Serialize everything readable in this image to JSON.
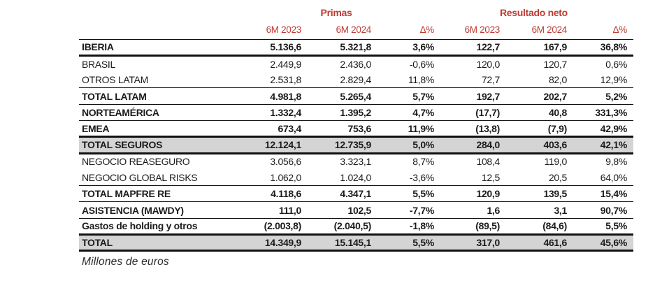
{
  "colors": {
    "header_red": "#be3b31",
    "total_row_bg": "#d4d4d4",
    "border": "#111111",
    "text": "#1b1b1b"
  },
  "footnote": "Millones de euros",
  "table": {
    "group_headers": [
      {
        "label": "Primas"
      },
      {
        "label": "Resultado neto"
      }
    ],
    "column_headers": [
      "6M 2023",
      "6M 2024",
      "Δ%",
      "6M 2023",
      "6M 2024",
      "Δ%"
    ],
    "rows": [
      {
        "label": "IBERIA",
        "values": [
          "5.136,6",
          "5.321,8",
          "3,6%",
          "122,7",
          "167,9",
          "36,8%"
        ]
      },
      {
        "label": "BRASIL",
        "values": [
          "2.449,9",
          "2.436,0",
          "-0,6%",
          "120,0",
          "120,7",
          "0,6%"
        ]
      },
      {
        "label": "OTROS LATAM",
        "values": [
          "2.531,8",
          "2.829,4",
          "11,8%",
          "72,7",
          "82,0",
          "12,9%"
        ]
      },
      {
        "label": "TOTAL LATAM",
        "values": [
          "4.981,8",
          "5.265,4",
          "5,7%",
          "192,7",
          "202,7",
          "5,2%"
        ]
      },
      {
        "label": "NORTEAMÉRICA",
        "values": [
          "1.332,4",
          "1.395,2",
          "4,7%",
          "(17,7)",
          "40,8",
          "331,3%"
        ]
      },
      {
        "label": "EMEA",
        "values": [
          "673,4",
          "753,6",
          "11,9%",
          "(13,8)",
          "(7,9)",
          "42,9%"
        ]
      },
      {
        "label": "TOTAL SEGUROS",
        "values": [
          "12.124,1",
          "12.735,9",
          "5,0%",
          "284,0",
          "403,6",
          "42,1%"
        ]
      },
      {
        "label": "NEGOCIO REASEGURO",
        "values": [
          "3.056,6",
          "3.323,1",
          "8,7%",
          "108,4",
          "119,0",
          "9,8%"
        ]
      },
      {
        "label": "NEGOCIO GLOBAL RISKS",
        "values": [
          "1.062,0",
          "1.024,0",
          "-3,6%",
          "12,5",
          "20,5",
          "64,0%"
        ]
      },
      {
        "label": "TOTAL MAPFRE RE",
        "values": [
          "4.118,6",
          "4.347,1",
          "5,5%",
          "120,9",
          "139,5",
          "15,4%"
        ]
      },
      {
        "label": "ASISTENCIA (MAWDY)",
        "values": [
          "111,0",
          "102,5",
          "-7,7%",
          "1,6",
          "3,1",
          "90,7%"
        ]
      },
      {
        "label": "Gastos de holding y otros",
        "values": [
          "(2.003,8)",
          "(2.040,5)",
          "-1,8%",
          "(89,5)",
          "(84,6)",
          "5,5%"
        ]
      },
      {
        "label": "TOTAL",
        "values": [
          "14.349,9",
          "15.145,1",
          "5,5%",
          "317,0",
          "461,6",
          "45,6%"
        ]
      }
    ]
  }
}
